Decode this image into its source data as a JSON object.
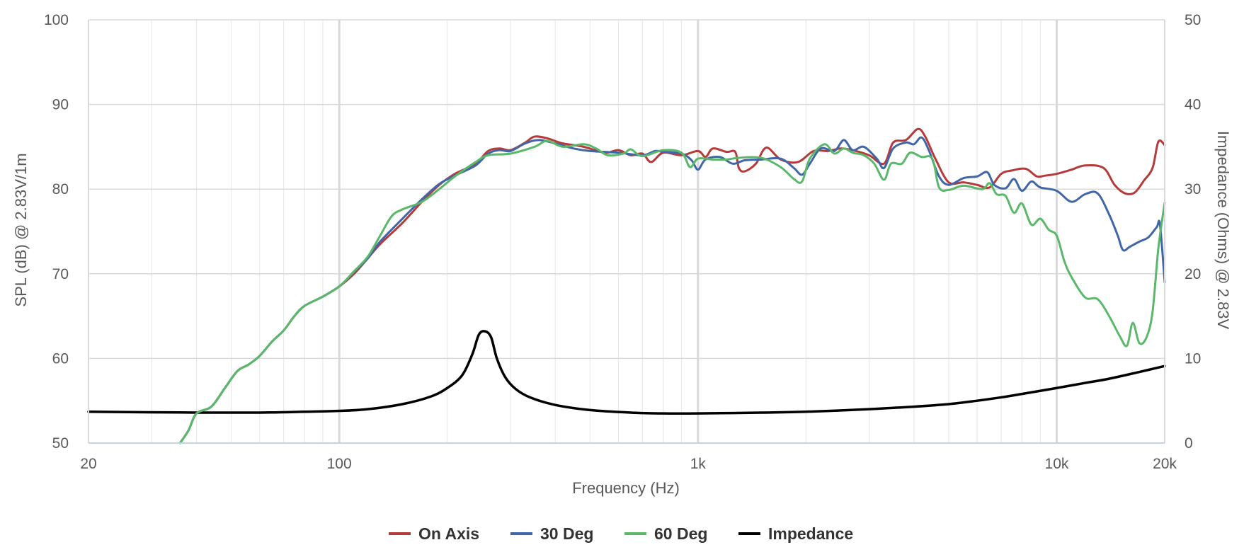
{
  "chart_data": {
    "type": "line",
    "xlabel": "Frequency (Hz)",
    "ylabel": "SPL (dB) @ 2.83V/1m",
    "y2label": "Impedance (Ohms) @ 2.83V",
    "xscale": "log",
    "xlim": [
      20,
      20000
    ],
    "ylim": [
      50,
      100
    ],
    "y2lim": [
      0,
      50
    ],
    "grid": true,
    "legend_position": "bottom",
    "x_ticks": [
      {
        "value": 20,
        "label": "20"
      },
      {
        "value": 100,
        "label": "100"
      },
      {
        "value": 1000,
        "label": "1k"
      },
      {
        "value": 10000,
        "label": "10k"
      },
      {
        "value": 20000,
        "label": "20k"
      }
    ],
    "y_ticks": [
      {
        "value": 50,
        "label": "50"
      },
      {
        "value": 60,
        "label": "60"
      },
      {
        "value": 70,
        "label": "70"
      },
      {
        "value": 80,
        "label": "80"
      },
      {
        "value": 90,
        "label": "90"
      },
      {
        "value": 100,
        "label": "100"
      }
    ],
    "y2_ticks": [
      {
        "value": 0,
        "label": "0"
      },
      {
        "value": 10,
        "label": "10"
      },
      {
        "value": 20,
        "label": "20"
      },
      {
        "value": 30,
        "label": "30"
      },
      {
        "value": 40,
        "label": "40"
      },
      {
        "value": 50,
        "label": "50"
      }
    ],
    "series": [
      {
        "name": "On Axis",
        "color": "#b53a3a",
        "axis": "left",
        "points": [
          [
            36,
            50
          ],
          [
            38,
            51.5
          ],
          [
            40,
            53.5
          ],
          [
            44,
            54.3
          ],
          [
            48,
            56.5
          ],
          [
            52,
            58.5
          ],
          [
            56,
            59.3
          ],
          [
            60,
            60.3
          ],
          [
            65,
            62
          ],
          [
            70,
            63.3
          ],
          [
            75,
            65
          ],
          [
            80,
            66.2
          ],
          [
            90,
            67.3
          ],
          [
            100,
            68.5
          ],
          [
            110,
            70
          ],
          [
            120,
            71.8
          ],
          [
            130,
            73.5
          ],
          [
            150,
            76
          ],
          [
            170,
            78.5
          ],
          [
            190,
            80.5
          ],
          [
            210,
            81.8
          ],
          [
            240,
            83
          ],
          [
            260,
            84.5
          ],
          [
            280,
            84.8
          ],
          [
            300,
            84.6
          ],
          [
            330,
            85.5
          ],
          [
            350,
            86.2
          ],
          [
            380,
            86
          ],
          [
            420,
            85.4
          ],
          [
            480,
            85
          ],
          [
            550,
            84.3
          ],
          [
            600,
            84.6
          ],
          [
            650,
            84
          ],
          [
            700,
            84.2
          ],
          [
            740,
            83.2
          ],
          [
            800,
            84.3
          ],
          [
            900,
            84
          ],
          [
            1000,
            84.5
          ],
          [
            1050,
            83.8
          ],
          [
            1100,
            84.8
          ],
          [
            1200,
            84.4
          ],
          [
            1270,
            84.4
          ],
          [
            1300,
            82.5
          ],
          [
            1350,
            82.1
          ],
          [
            1450,
            83
          ],
          [
            1550,
            84.9
          ],
          [
            1700,
            83.5
          ],
          [
            1900,
            83.2
          ],
          [
            2100,
            84.5
          ],
          [
            2300,
            84.5
          ],
          [
            2500,
            84.8
          ],
          [
            2700,
            84.6
          ],
          [
            3000,
            84
          ],
          [
            3300,
            83
          ],
          [
            3500,
            85.5
          ],
          [
            3800,
            85.8
          ],
          [
            4100,
            87.1
          ],
          [
            4300,
            86.2
          ],
          [
            4600,
            83.5
          ],
          [
            5000,
            80.8
          ],
          [
            5500,
            80.8
          ],
          [
            6000,
            80.5
          ],
          [
            6500,
            80.2
          ],
          [
            7000,
            81.8
          ],
          [
            7500,
            82.2
          ],
          [
            8200,
            82.4
          ],
          [
            8800,
            81.5
          ],
          [
            9300,
            81.6
          ],
          [
            10000,
            81.8
          ],
          [
            11000,
            82.3
          ],
          [
            12000,
            82.8
          ],
          [
            13500,
            82.5
          ],
          [
            14500,
            80.5
          ],
          [
            15500,
            79.5
          ],
          [
            16500,
            79.6
          ],
          [
            17500,
            81
          ],
          [
            18500,
            82.5
          ],
          [
            19200,
            85.6
          ],
          [
            20000,
            85.2
          ]
        ]
      },
      {
        "name": "30 Deg",
        "color": "#4066a8",
        "axis": "left",
        "points": [
          [
            36,
            50
          ],
          [
            38,
            51.5
          ],
          [
            40,
            53.5
          ],
          [
            44,
            54.3
          ],
          [
            48,
            56.5
          ],
          [
            52,
            58.5
          ],
          [
            56,
            59.3
          ],
          [
            60,
            60.3
          ],
          [
            65,
            62
          ],
          [
            70,
            63.3
          ],
          [
            75,
            65
          ],
          [
            80,
            66.2
          ],
          [
            90,
            67.3
          ],
          [
            100,
            68.5
          ],
          [
            110,
            70.2
          ],
          [
            120,
            71.8
          ],
          [
            130,
            73.8
          ],
          [
            150,
            76.5
          ],
          [
            170,
            78.8
          ],
          [
            190,
            80.6
          ],
          [
            210,
            81.6
          ],
          [
            240,
            82.8
          ],
          [
            260,
            84.2
          ],
          [
            280,
            84.6
          ],
          [
            300,
            84.5
          ],
          [
            330,
            85.4
          ],
          [
            360,
            85.8
          ],
          [
            400,
            85.4
          ],
          [
            450,
            84.8
          ],
          [
            500,
            84.5
          ],
          [
            600,
            84.3
          ],
          [
            700,
            84
          ],
          [
            760,
            84.5
          ],
          [
            800,
            84.4
          ],
          [
            900,
            84.2
          ],
          [
            960,
            83.4
          ],
          [
            1000,
            82.3
          ],
          [
            1050,
            83.5
          ],
          [
            1150,
            83.8
          ],
          [
            1250,
            83
          ],
          [
            1350,
            83.4
          ],
          [
            1500,
            83.5
          ],
          [
            1700,
            83.6
          ],
          [
            1850,
            82.5
          ],
          [
            1950,
            81.7
          ],
          [
            2050,
            83
          ],
          [
            2200,
            84.8
          ],
          [
            2400,
            84.5
          ],
          [
            2550,
            85.8
          ],
          [
            2700,
            84.6
          ],
          [
            2900,
            85
          ],
          [
            3150,
            83.6
          ],
          [
            3300,
            82.5
          ],
          [
            3500,
            84.8
          ],
          [
            3800,
            85.5
          ],
          [
            4000,
            85.3
          ],
          [
            4200,
            86.1
          ],
          [
            4400,
            84.6
          ],
          [
            4700,
            81.5
          ],
          [
            5000,
            80.5
          ],
          [
            5500,
            81.3
          ],
          [
            6000,
            81.5
          ],
          [
            6400,
            82
          ],
          [
            6700,
            80.5
          ],
          [
            7200,
            80.1
          ],
          [
            7600,
            81.2
          ],
          [
            8000,
            79.8
          ],
          [
            8500,
            80.9
          ],
          [
            9000,
            80.2
          ],
          [
            10000,
            79.8
          ],
          [
            11000,
            78.5
          ],
          [
            12000,
            79.4
          ],
          [
            13000,
            79.5
          ],
          [
            14000,
            77
          ],
          [
            14800,
            74.5
          ],
          [
            15300,
            72.8
          ],
          [
            16000,
            73.2
          ],
          [
            17000,
            73.8
          ],
          [
            18000,
            74.3
          ],
          [
            19000,
            75.5
          ],
          [
            19400,
            75.8
          ],
          [
            20000,
            69
          ]
        ]
      },
      {
        "name": "60 Deg",
        "color": "#5bb86a",
        "axis": "left",
        "points": [
          [
            36,
            50
          ],
          [
            38,
            51.5
          ],
          [
            40,
            53.5
          ],
          [
            44,
            54.3
          ],
          [
            48,
            56.5
          ],
          [
            52,
            58.5
          ],
          [
            56,
            59.3
          ],
          [
            60,
            60.3
          ],
          [
            65,
            62
          ],
          [
            70,
            63.3
          ],
          [
            75,
            65
          ],
          [
            80,
            66.2
          ],
          [
            90,
            67.3
          ],
          [
            100,
            68.5
          ],
          [
            110,
            70.3
          ],
          [
            120,
            72
          ],
          [
            130,
            74.5
          ],
          [
            140,
            76.8
          ],
          [
            150,
            77.6
          ],
          [
            170,
            78.5
          ],
          [
            190,
            80
          ],
          [
            210,
            81.5
          ],
          [
            240,
            83.2
          ],
          [
            260,
            84
          ],
          [
            300,
            84.2
          ],
          [
            350,
            85
          ],
          [
            380,
            85.7
          ],
          [
            420,
            85
          ],
          [
            480,
            85.3
          ],
          [
            520,
            84.8
          ],
          [
            560,
            84
          ],
          [
            620,
            84.2
          ],
          [
            650,
            84.7
          ],
          [
            700,
            83.9
          ],
          [
            800,
            84.6
          ],
          [
            900,
            84.3
          ],
          [
            950,
            82.6
          ],
          [
            1000,
            83.6
          ],
          [
            1100,
            83.5
          ],
          [
            1200,
            83.5
          ],
          [
            1300,
            83.7
          ],
          [
            1500,
            83.7
          ],
          [
            1700,
            82.6
          ],
          [
            1850,
            81.2
          ],
          [
            1950,
            80.9
          ],
          [
            2050,
            83.6
          ],
          [
            2250,
            85.3
          ],
          [
            2400,
            84.2
          ],
          [
            2550,
            84.8
          ],
          [
            2700,
            84.3
          ],
          [
            2900,
            84
          ],
          [
            3100,
            83
          ],
          [
            3300,
            81.1
          ],
          [
            3450,
            83
          ],
          [
            3700,
            83
          ],
          [
            3900,
            84.3
          ],
          [
            4200,
            83.8
          ],
          [
            4500,
            83.6
          ],
          [
            4700,
            80.2
          ],
          [
            5000,
            79.9
          ],
          [
            5500,
            80.4
          ],
          [
            6200,
            80
          ],
          [
            6500,
            80.7
          ],
          [
            6800,
            79.4
          ],
          [
            7200,
            79.2
          ],
          [
            7600,
            77.2
          ],
          [
            8000,
            78.3
          ],
          [
            8500,
            75.8
          ],
          [
            9000,
            76.5
          ],
          [
            9500,
            75.2
          ],
          [
            10000,
            74.5
          ],
          [
            10500,
            71.5
          ],
          [
            11000,
            69.6
          ],
          [
            12000,
            67.2
          ],
          [
            13000,
            67
          ],
          [
            14000,
            65
          ],
          [
            15000,
            62.6
          ],
          [
            15700,
            61.5
          ],
          [
            16300,
            64.2
          ],
          [
            17000,
            61.8
          ],
          [
            17800,
            62.5
          ],
          [
            18500,
            65.5
          ],
          [
            19200,
            73
          ],
          [
            20000,
            78.4
          ]
        ]
      },
      {
        "name": "Impedance",
        "color": "#000000",
        "axis": "right",
        "points": [
          [
            20,
            3.7
          ],
          [
            40,
            3.6
          ],
          [
            60,
            3.6
          ],
          [
            80,
            3.7
          ],
          [
            100,
            3.8
          ],
          [
            120,
            4
          ],
          [
            150,
            4.6
          ],
          [
            180,
            5.5
          ],
          [
            200,
            6.5
          ],
          [
            220,
            8
          ],
          [
            235,
            10.5
          ],
          [
            245,
            12.8
          ],
          [
            255,
            13.2
          ],
          [
            265,
            12.5
          ],
          [
            275,
            10
          ],
          [
            290,
            7.8
          ],
          [
            310,
            6.4
          ],
          [
            340,
            5.4
          ],
          [
            400,
            4.5
          ],
          [
            500,
            3.9
          ],
          [
            650,
            3.6
          ],
          [
            800,
            3.5
          ],
          [
            1000,
            3.5
          ],
          [
            1500,
            3.6
          ],
          [
            2000,
            3.7
          ],
          [
            3000,
            4
          ],
          [
            4000,
            4.3
          ],
          [
            5000,
            4.6
          ],
          [
            6000,
            5
          ],
          [
            7000,
            5.4
          ],
          [
            8000,
            5.8
          ],
          [
            10000,
            6.5
          ],
          [
            12000,
            7.1
          ],
          [
            14000,
            7.6
          ],
          [
            17000,
            8.4
          ],
          [
            20000,
            9.1
          ]
        ]
      }
    ]
  }
}
